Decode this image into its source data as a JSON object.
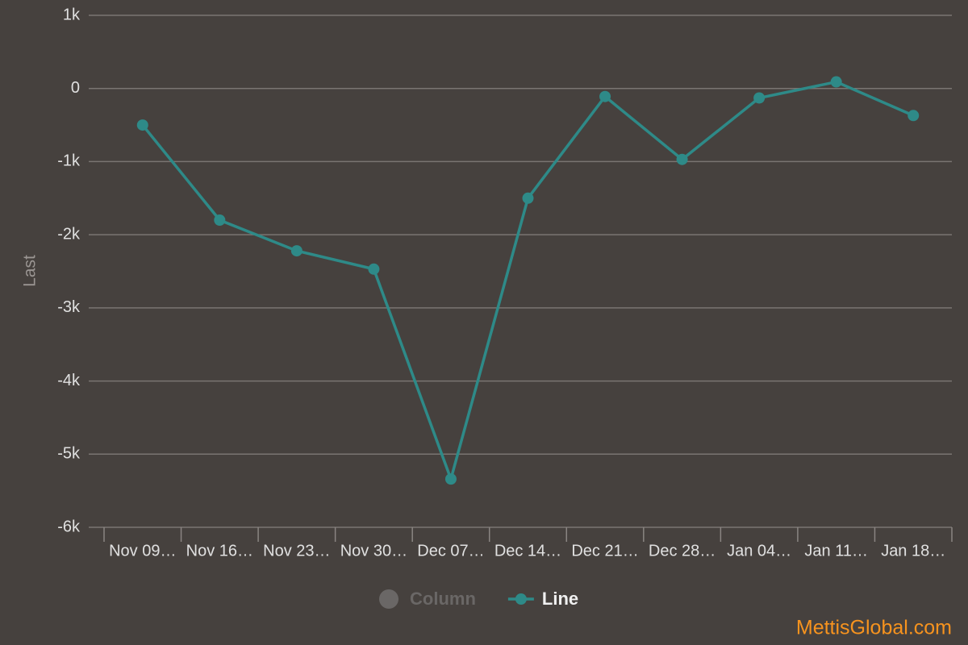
{
  "chart_data": {
    "type": "line",
    "y_label": "Last",
    "categories": [
      "Nov 09…",
      "Nov 16…",
      "Nov 23…",
      "Nov 30…",
      "Dec 07…",
      "Dec 14…",
      "Dec 21…",
      "Dec 28…",
      "Jan 04…",
      "Jan 11…",
      "Jan 18…"
    ],
    "series": [
      {
        "name": "Line",
        "color": "#2e8a88",
        "values": [
          -500,
          -1800,
          -2220,
          -2470,
          -5340,
          -1500,
          -110,
          -970,
          -130,
          90,
          -370
        ]
      }
    ],
    "hidden_series": [
      {
        "name": "Column",
        "color": "#6a6766"
      }
    ],
    "ylim": [
      -6000,
      1000
    ],
    "yticks": [
      {
        "value": -6000,
        "label": "-6k"
      },
      {
        "value": -5000,
        "label": "-5k"
      },
      {
        "value": -4000,
        "label": "-4k"
      },
      {
        "value": -3000,
        "label": "-3k"
      },
      {
        "value": -2000,
        "label": "-2k"
      },
      {
        "value": -1000,
        "label": "-1k"
      },
      0,
      {
        "value": 1000,
        "label": "1k"
      }
    ],
    "grid": true,
    "watermark": "MettisGlobal.com",
    "watermark_color": "#f7931e"
  }
}
